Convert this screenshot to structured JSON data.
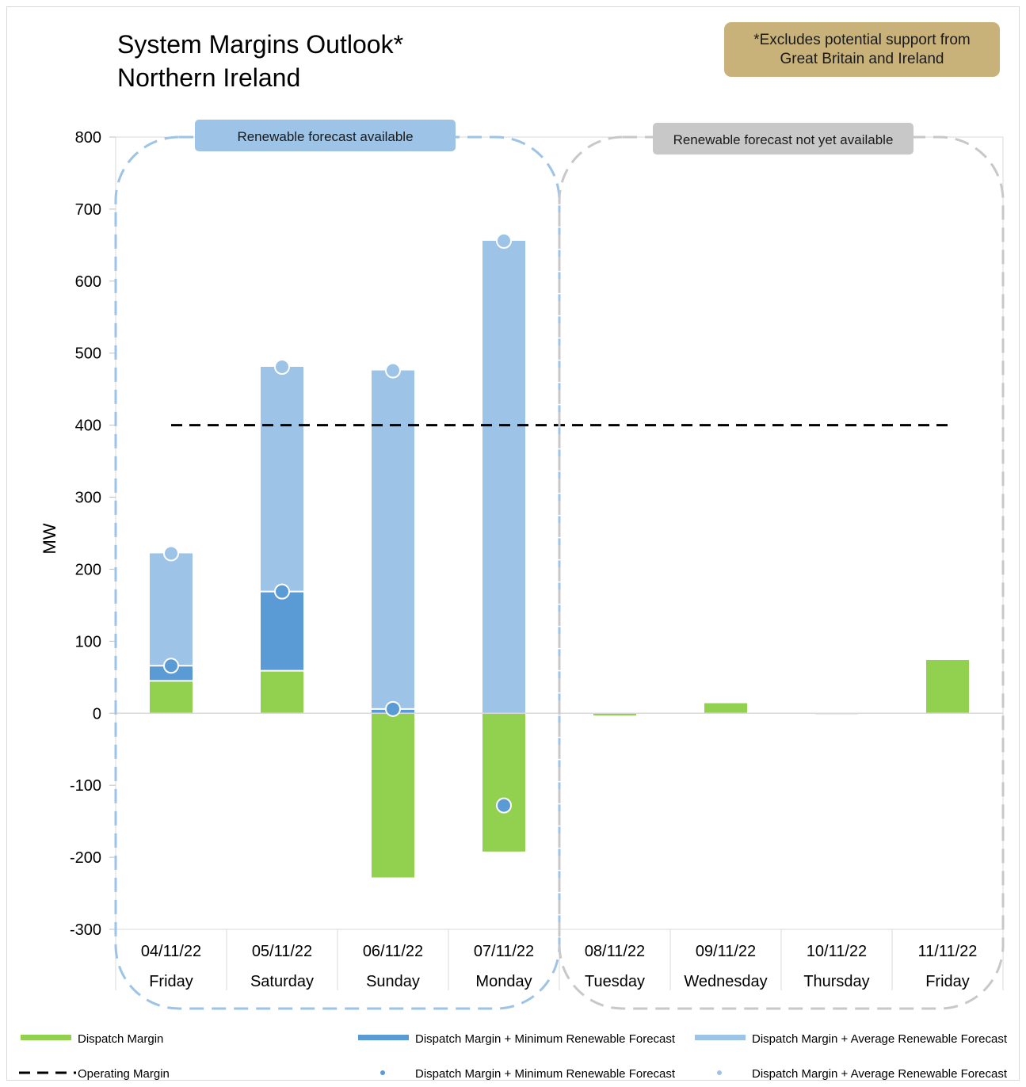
{
  "title": [
    "System Margins Outlook*",
    "Northern Ireland"
  ],
  "note": [
    "*Excludes potential support from",
    "Great Britain and Ireland"
  ],
  "chart_data": {
    "type": "bar",
    "ylabel": "MW",
    "ylim": [
      -300,
      800
    ],
    "yticks": [
      800,
      700,
      600,
      500,
      400,
      300,
      200,
      100,
      0,
      -100,
      -200,
      -300
    ],
    "categories": [
      {
        "date": "04/11/22",
        "day": "Friday"
      },
      {
        "date": "05/11/22",
        "day": "Saturday"
      },
      {
        "date": "06/11/22",
        "day": "Sunday"
      },
      {
        "date": "07/11/22",
        "day": "Monday"
      },
      {
        "date": "08/11/22",
        "day": "Tuesday"
      },
      {
        "date": "09/11/22",
        "day": "Wednesday"
      },
      {
        "date": "10/11/22",
        "day": "Thursday"
      },
      {
        "date": "11/11/22",
        "day": "Friday"
      }
    ],
    "series": [
      {
        "name": "Dispatch Margin",
        "kind": "bar",
        "color": "#92d050",
        "values": [
          45,
          59,
          -228,
          -192,
          -3,
          14,
          0,
          74
        ]
      },
      {
        "name": "Dispatch Margin + Minimum Renewable Forecast",
        "kind": "bar",
        "color": "#5b9bd5",
        "values": [
          66,
          169,
          6,
          -128,
          null,
          null,
          null,
          null
        ]
      },
      {
        "name": "Dispatch Margin + Average Renewable Forecast",
        "kind": "bar",
        "color": "#9dc3e6",
        "values": [
          222,
          481,
          476,
          656,
          null,
          null,
          null,
          null
        ]
      },
      {
        "name": "Operating Margin",
        "kind": "line",
        "color": "#000000",
        "value": 400
      }
    ],
    "regions": [
      {
        "label": "Renewable forecast available",
        "first": 0,
        "last": 3,
        "color": "#9dc3e6",
        "badge": "#9dc3e6"
      },
      {
        "label": "Renewable forecast not yet available",
        "first": 4,
        "last": 7,
        "color": "#c8c8c8",
        "badge": "#c8c8c8"
      }
    ],
    "legend": [
      {
        "label": "Dispatch Margin",
        "symbol": "bar",
        "color": "#92d050"
      },
      {
        "label": "Dispatch Margin + Minimum Renewable Forecast",
        "symbol": "bar",
        "color": "#5b9bd5"
      },
      {
        "label": "Dispatch Margin + Average Renewable Forecast",
        "symbol": "bar",
        "color": "#9dc3e6"
      },
      {
        "label": "Operating Margin",
        "symbol": "dash",
        "color": "#000000"
      },
      {
        "label": "Dispatch Margin + Minimum Renewable Forecast",
        "symbol": "dot",
        "color": "#5b9bd5"
      },
      {
        "label": "Dispatch Margin + Average Renewable Forecast",
        "symbol": "dot",
        "color": "#9dc3e6"
      }
    ],
    "grid": false,
    "legend_position": "bottom"
  }
}
